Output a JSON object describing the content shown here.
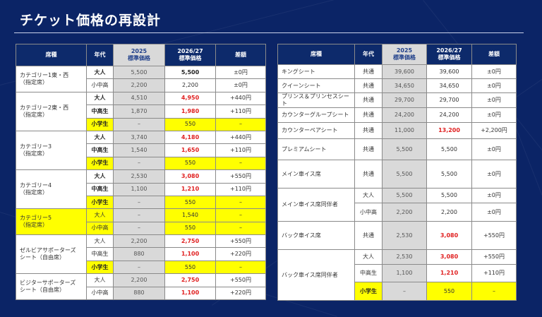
{
  "title": "チケット価格の再設計",
  "colors": {
    "background": "#0b2466",
    "header": "#0d2a6b",
    "highlight": "#ffff00",
    "increase": "#e02020",
    "prev_column": "#d9d9d9"
  },
  "headers": {
    "seat": "席種",
    "age": "年代",
    "y2025": "2025",
    "y2025_sub": "標準価格",
    "y2026": "2026/27",
    "y2026_sub": "標準価格",
    "diff": "差額"
  },
  "left_table": [
    {
      "seat": "カテゴリー1東・西\n（指定席）",
      "rows": [
        {
          "age": "大人",
          "p2025": "5,500",
          "p2026": "5,500",
          "diff": "±0円",
          "bold": true,
          "newbold": true
        },
        {
          "age": "小中高",
          "p2025": "2,200",
          "p2026": "2,200",
          "diff": "±0円"
        }
      ]
    },
    {
      "seat": "カテゴリー2東・西\n（指定席）",
      "rows": [
        {
          "age": "大人",
          "p2025": "4,510",
          "p2026": "4,950",
          "diff": "+440円",
          "bold": true,
          "red": true
        },
        {
          "age": "中高生",
          "p2025": "1,870",
          "p2026": "1,980",
          "diff": "+110円",
          "bold": true,
          "red": true
        },
        {
          "age": "小学生",
          "p2025": "–",
          "p2026": "550",
          "diff": "–",
          "bold": true,
          "yellow": true
        }
      ]
    },
    {
      "seat": "カテゴリー3\n（指定席）",
      "rows": [
        {
          "age": "大人",
          "p2025": "3,740",
          "p2026": "4,180",
          "diff": "+440円",
          "bold": true,
          "red": true
        },
        {
          "age": "中高生",
          "p2025": "1,540",
          "p2026": "1,650",
          "diff": "+110円",
          "bold": true,
          "red": true
        },
        {
          "age": "小学生",
          "p2025": "–",
          "p2026": "550",
          "diff": "–",
          "bold": true,
          "yellow": true
        }
      ]
    },
    {
      "seat": "カテゴリー4\n（指定席）",
      "rows": [
        {
          "age": "大人",
          "p2025": "2,530",
          "p2026": "3,080",
          "diff": "+550円",
          "bold": true,
          "red": true
        },
        {
          "age": "中高生",
          "p2025": "1,100",
          "p2026": "1,210",
          "diff": "+110円",
          "bold": true,
          "red": true
        },
        {
          "age": "小学生",
          "p2025": "–",
          "p2026": "550",
          "diff": "–",
          "bold": true,
          "yellow": true
        }
      ]
    },
    {
      "seat": "カテゴリー5\n（指定席）",
      "seat_yellow": true,
      "rows": [
        {
          "age": "大人",
          "p2025": "–",
          "p2026": "1,540",
          "diff": "–",
          "yellow": true
        },
        {
          "age": "小中高",
          "p2025": "–",
          "p2026": "550",
          "diff": "–",
          "yellow": true
        }
      ]
    },
    {
      "seat": "ゼルビアサポーターズ\nシート（自由席）",
      "rows": [
        {
          "age": "大人",
          "p2025": "2,200",
          "p2026": "2,750",
          "diff": "+550円",
          "red": true
        },
        {
          "age": "中高生",
          "p2025": "880",
          "p2026": "1,100",
          "diff": "+220円",
          "red": true
        },
        {
          "age": "小学生",
          "p2025": "–",
          "p2026": "550",
          "diff": "–",
          "bold": true,
          "yellow": true
        }
      ]
    },
    {
      "seat": "ビジターサポーターズ\nシート（自由席）",
      "rows": [
        {
          "age": "大人",
          "p2025": "2,200",
          "p2026": "2,750",
          "diff": "+550円",
          "red": true
        },
        {
          "age": "小中高",
          "p2025": "880",
          "p2026": "1,100",
          "diff": "+220円",
          "red": true
        }
      ]
    }
  ],
  "right_table": [
    {
      "seat": "キングシート",
      "rows": [
        {
          "age": "共通",
          "p2025": "39,600",
          "p2026": "39,600",
          "diff": "±0円"
        }
      ]
    },
    {
      "seat": "クイーンシート",
      "rows": [
        {
          "age": "共通",
          "p2025": "34,650",
          "p2026": "34,650",
          "diff": "±0円"
        }
      ]
    },
    {
      "seat": "プリンス＆プリンセスシート",
      "rows": [
        {
          "age": "共通",
          "p2025": "29,700",
          "p2026": "29,700",
          "diff": "±0円"
        }
      ]
    },
    {
      "seat": "カウンターグループシート",
      "rows": [
        {
          "age": "共通",
          "p2025": "24,200",
          "p2026": "24,200",
          "diff": "±0円"
        }
      ]
    },
    {
      "seat": "カウンターペアシート",
      "rows": [
        {
          "age": "共通",
          "p2025": "11,000",
          "p2026": "13,200",
          "diff": "+2,200円",
          "red": true
        }
      ]
    },
    {
      "seat": "プレミアムシート",
      "rows": [
        {
          "age": "共通",
          "p2025": "5,500",
          "p2026": "5,500",
          "diff": "±0円"
        }
      ]
    },
    {
      "seat": "メイン車イス席",
      "rows": [
        {
          "age": "共通",
          "p2025": "5,500",
          "p2026": "5,500",
          "diff": "±0円"
        }
      ]
    },
    {
      "seat": "メイン車イス席同伴者",
      "rows": [
        {
          "age": "大人",
          "p2025": "5,500",
          "p2026": "5,500",
          "diff": "±0円"
        },
        {
          "age": "小中高",
          "p2025": "2,200",
          "p2026": "2,200",
          "diff": "±0円"
        }
      ]
    },
    {
      "seat": "バック車イス席",
      "rows": [
        {
          "age": "共通",
          "p2025": "2,530",
          "p2026": "3,080",
          "diff": "+550円",
          "red": true
        }
      ]
    },
    {
      "seat": "バック車イス席同伴者",
      "rows": [
        {
          "age": "大人",
          "p2025": "2,530",
          "p2026": "3,080",
          "diff": "+550円",
          "red": true
        },
        {
          "age": "中高生",
          "p2025": "1,100",
          "p2026": "1,210",
          "diff": "+110円",
          "red": true
        },
        {
          "age": "小学生",
          "p2025": "–",
          "p2026": "550",
          "diff": "–",
          "yellow": true,
          "bold": true
        }
      ]
    }
  ]
}
